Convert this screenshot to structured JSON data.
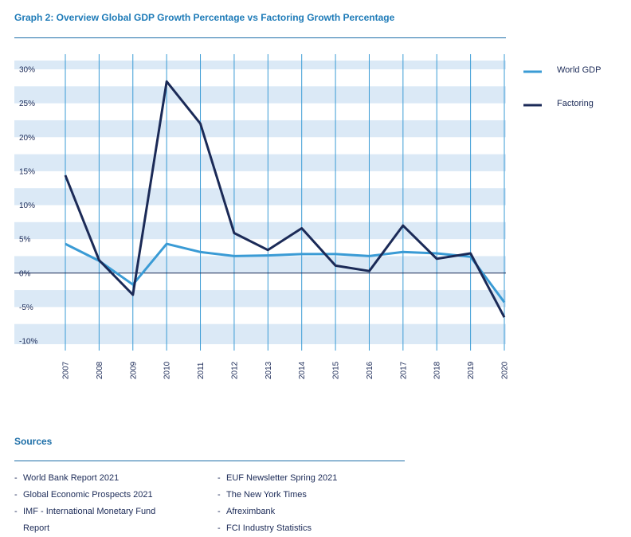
{
  "title": "Graph 2: Overview Global GDP Growth Percentage vs Factoring Growth Percentage",
  "chart_data": {
    "type": "line",
    "title": "Graph 2: Overview Global GDP Growth Percentage vs Factoring Growth Percentage",
    "xlabel": "",
    "ylabel": "",
    "x": [
      "2007",
      "2008",
      "2009",
      "2010",
      "2011",
      "2012",
      "2013",
      "2014",
      "2015",
      "2016",
      "2017",
      "2018",
      "2019",
      "2020"
    ],
    "yticks": [
      "30%",
      "25%",
      "20%",
      "15%",
      "10%",
      "5%",
      "0%",
      "-5%",
      "-10%"
    ],
    "ylim": [
      -10,
      30
    ],
    "grid": "horizontal bands every 2.5%, vertical line at each year",
    "legend_position": "right",
    "series": [
      {
        "name": "World GDP",
        "color": "#3a9bd5",
        "values": [
          4.3,
          1.8,
          -1.7,
          4.3,
          3.1,
          2.5,
          2.6,
          2.8,
          2.8,
          2.5,
          3.1,
          2.9,
          2.4,
          -4.3
        ]
      },
      {
        "name": "Factoring",
        "color": "#1b2a57",
        "values": [
          14.4,
          1.9,
          -3.2,
          28.2,
          22.0,
          5.9,
          3.4,
          6.6,
          1.1,
          0.3,
          7.0,
          2.1,
          2.9,
          -6.5
        ]
      }
    ]
  },
  "sources": {
    "title": "Sources",
    "col1": [
      {
        "dash": "-",
        "text": "World Bank Report 2021"
      },
      {
        "dash": "-",
        "text": "Global Economic Prospects 2021"
      },
      {
        "dash": "-",
        "text": "IMF - International Monetary Fund",
        "cont": "Report"
      }
    ],
    "col2": [
      {
        "dash": "-",
        "text": "EUF Newsletter Spring 2021"
      },
      {
        "dash": "-",
        "text": "The New York Times"
      },
      {
        "dash": "-",
        "text": "Afreximbank"
      },
      {
        "dash": "-",
        "text": "FCI Industry Statistics"
      }
    ]
  }
}
